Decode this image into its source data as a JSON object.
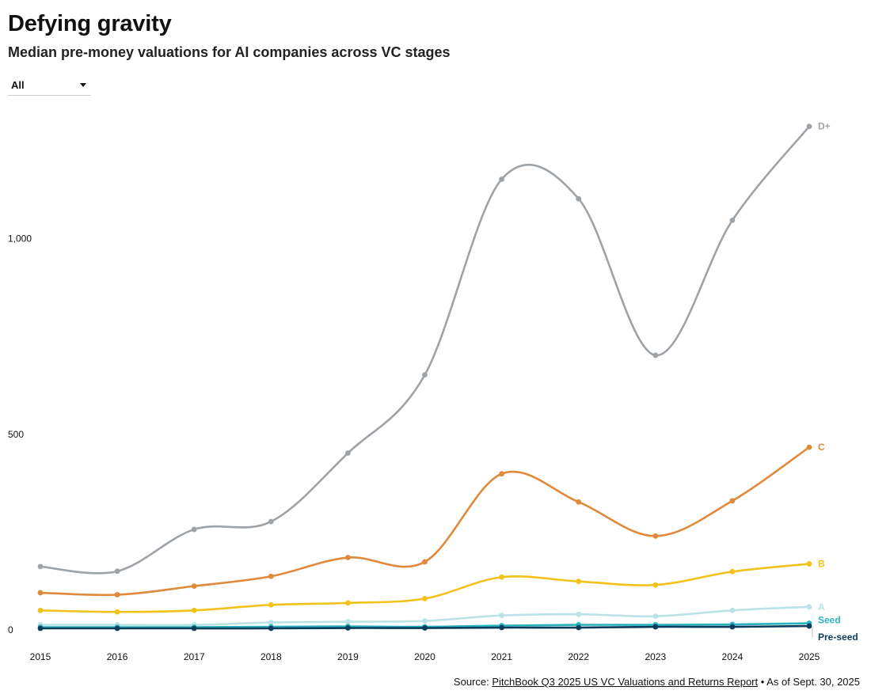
{
  "header": {
    "title": "Defying gravity",
    "subtitle": "Median pre-money valuations for AI companies across VC stages"
  },
  "filter": {
    "selected": "All"
  },
  "source": {
    "prefix": "Source: ",
    "link_text": "PitchBook Q3 2025 US VC Valuations and Returns Report",
    "suffix": " • As of Sept. 30, 2025"
  },
  "chart_data": {
    "type": "line",
    "title": "Defying gravity",
    "subtitle": "Median pre-money valuations for AI companies across VC stages",
    "xlabel": "",
    "ylabel": "",
    "x": [
      2015,
      2016,
      2017,
      2018,
      2019,
      2020,
      2021,
      2022,
      2023,
      2024,
      2025
    ],
    "ylim": [
      0,
      1300
    ],
    "yticks": [
      0,
      500,
      1000
    ],
    "ytick_labels": [
      "0",
      "500",
      "1,000"
    ],
    "grid": false,
    "series": [
      {
        "name": "D+",
        "color": "#9ea3a8",
        "values": [
          160,
          148,
          255,
          275,
          450,
          650,
          1150,
          1100,
          700,
          1045,
          1285
        ]
      },
      {
        "name": "C",
        "color": "#e0893a",
        "values": [
          93,
          88,
          110,
          135,
          183,
          172,
          397,
          325,
          238,
          328,
          465
        ]
      },
      {
        "name": "B",
        "color": "#f2c21b",
        "values": [
          48,
          44,
          48,
          62,
          67,
          78,
          133,
          122,
          113,
          147,
          167
        ]
      },
      {
        "name": "A",
        "color": "#b9e3e5",
        "values": [
          11,
          11,
          11,
          17,
          19,
          21,
          35,
          38,
          33,
          48,
          57
        ]
      },
      {
        "name": "Seed",
        "color": "#2ab3bf",
        "values": [
          5,
          5,
          5,
          6,
          7,
          6,
          9,
          11,
          11,
          12,
          15
        ]
      },
      {
        "name": "Pre-seed",
        "color": "#0d3d5c",
        "values": [
          2,
          2,
          2,
          2,
          3,
          3,
          4,
          4,
          6,
          6,
          8
        ]
      }
    ]
  }
}
